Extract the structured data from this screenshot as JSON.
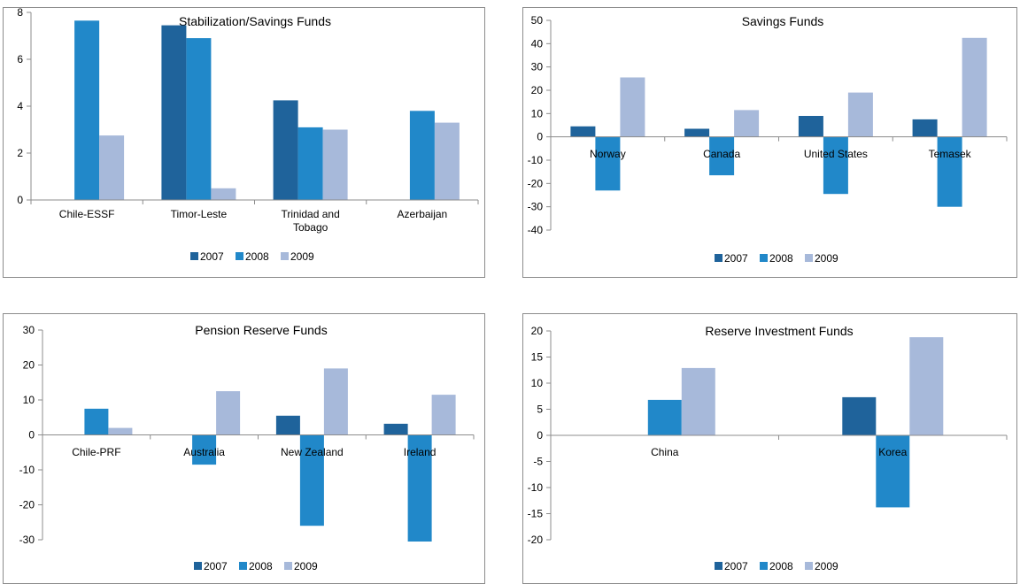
{
  "legend_labels": [
    "2007",
    "2008",
    "2009"
  ],
  "colors": {
    "2007": "#1f639b",
    "2008": "#2188c9",
    "2009": "#a7b9da",
    "axis": "#8c8c8c"
  },
  "chart_data": [
    {
      "type": "bar",
      "title": "Stabilization/Savings Funds",
      "categories": [
        "Chile-ESSF",
        "Timor-Leste",
        "Trinidad and Tobago",
        "Azerbaijan"
      ],
      "category_lines": [
        [
          "Chile-ESSF"
        ],
        [
          "Timor-Leste"
        ],
        [
          "Trinidad and",
          "Tobago"
        ],
        [
          "Azerbaijan"
        ]
      ],
      "series": [
        {
          "name": "2007",
          "values": [
            null,
            7.45,
            4.25,
            null
          ]
        },
        {
          "name": "2008",
          "values": [
            7.65,
            6.9,
            3.1,
            3.8
          ]
        },
        {
          "name": "2009",
          "values": [
            2.75,
            0.5,
            3.0,
            3.3
          ]
        }
      ],
      "ylim": [
        0,
        8
      ],
      "yticks": [
        0,
        2,
        4,
        6,
        8
      ],
      "xlabel": "",
      "ylabel": "",
      "legend": "bottom"
    },
    {
      "type": "bar",
      "title": "Savings Funds",
      "categories": [
        "Norway",
        "Canada",
        "United States",
        "Temasek"
      ],
      "category_lines": [
        [
          "Norway"
        ],
        [
          "Canada"
        ],
        [
          "United States"
        ],
        [
          "Temasek"
        ]
      ],
      "series": [
        {
          "name": "2007",
          "values": [
            4.5,
            3.5,
            9,
            7.5
          ]
        },
        {
          "name": "2008",
          "values": [
            -23,
            -16.5,
            -24.5,
            -30
          ]
        },
        {
          "name": "2009",
          "values": [
            25.5,
            11.5,
            19,
            42.5
          ]
        }
      ],
      "ylim": [
        -40,
        50
      ],
      "yticks": [
        -40,
        -30,
        -20,
        -10,
        0,
        10,
        20,
        30,
        40,
        50
      ],
      "xlabel": "",
      "ylabel": "",
      "legend": "bottom"
    },
    {
      "type": "bar",
      "title": "Pension Reserve Funds",
      "categories": [
        "Chile-PRF",
        "Australia",
        "New Zealand",
        "Ireland"
      ],
      "category_lines": [
        [
          "Chile-PRF"
        ],
        [
          "Australia"
        ],
        [
          "New Zealand"
        ],
        [
          "Ireland"
        ]
      ],
      "series": [
        {
          "name": "2007",
          "values": [
            null,
            null,
            5.5,
            3.2
          ]
        },
        {
          "name": "2008",
          "values": [
            7.5,
            -8.5,
            -26,
            -30.5
          ]
        },
        {
          "name": "2009",
          "values": [
            2,
            12.5,
            19,
            11.5
          ]
        }
      ],
      "ylim": [
        -30,
        30
      ],
      "yticks": [
        -30,
        -20,
        -10,
        0,
        10,
        20,
        30
      ],
      "xlabel": "",
      "ylabel": "",
      "legend": "bottom"
    },
    {
      "type": "bar",
      "title": "Reserve Investment Funds",
      "categories": [
        "China",
        "Korea"
      ],
      "category_lines": [
        [
          "China"
        ],
        [
          "Korea"
        ]
      ],
      "series": [
        {
          "name": "2007",
          "values": [
            null,
            7.3
          ]
        },
        {
          "name": "2008",
          "values": [
            6.8,
            -13.8
          ]
        },
        {
          "name": "2009",
          "values": [
            12.9,
            18.8
          ]
        }
      ],
      "ylim": [
        -20,
        20
      ],
      "yticks": [
        -20,
        -15,
        -10,
        -5,
        0,
        5,
        10,
        15,
        20
      ],
      "xlabel": "",
      "ylabel": "",
      "legend": "bottom"
    }
  ]
}
